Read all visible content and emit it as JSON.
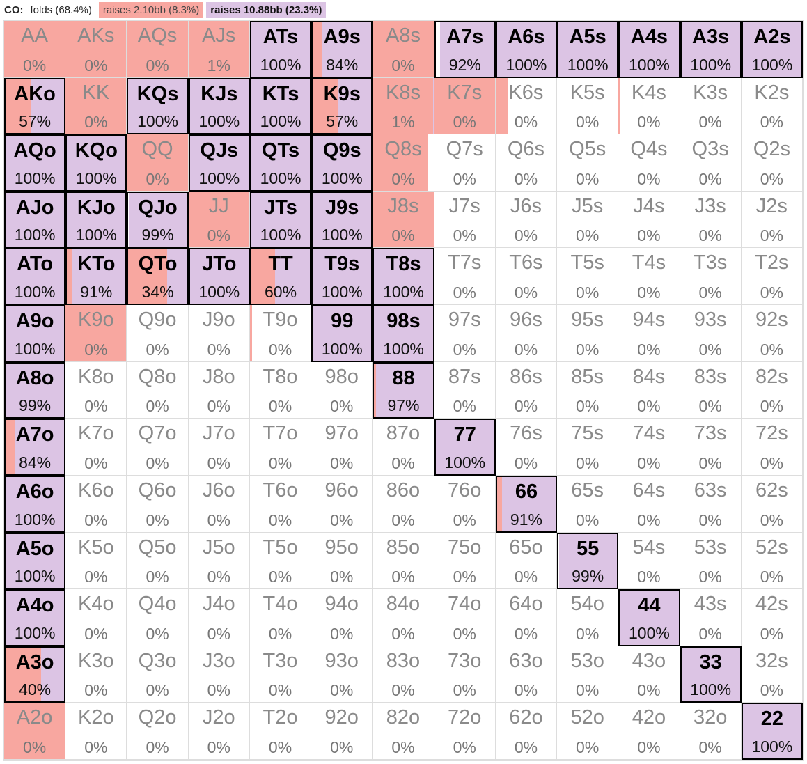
{
  "header": {
    "position": "CO:",
    "legend": [
      {
        "label": "folds (68.4%)",
        "kind": "fold"
      },
      {
        "label": "raises 2.10bb (8.3%)",
        "kind": "small"
      },
      {
        "label": "raises 10.88bb (23.3%)",
        "kind": "big"
      }
    ]
  },
  "colors": {
    "fold": "#ffffff",
    "raise_small": "#f8a7a0",
    "raise_big": "#dcc4e4",
    "highlight_border": "#000000"
  },
  "matrix": [
    [
      [
        "AA",
        "0%",
        0,
        1,
        0
      ],
      [
        "AKs",
        "0%",
        0,
        1,
        0
      ],
      [
        "AQs",
        "0%",
        0,
        1,
        0
      ],
      [
        "AJs",
        "1%",
        0,
        1,
        0.01
      ],
      [
        "ATs",
        "100%",
        1,
        0,
        1
      ],
      [
        "A9s",
        "84%",
        1,
        0.16,
        0.84
      ],
      [
        "A8s",
        "0%",
        0,
        1,
        0
      ],
      [
        "A7s",
        "92%",
        1,
        0,
        0.92
      ],
      [
        "A6s",
        "100%",
        1,
        0,
        1
      ],
      [
        "A5s",
        "100%",
        1,
        0,
        1
      ],
      [
        "A4s",
        "100%",
        1,
        0,
        1
      ],
      [
        "A3s",
        "100%",
        1,
        0,
        1
      ],
      [
        "A2s",
        "100%",
        1,
        0,
        1
      ]
    ],
    [
      [
        "AKo",
        "57%",
        1,
        0.43,
        0.57
      ],
      [
        "KK",
        "0%",
        0,
        1,
        0
      ],
      [
        "KQs",
        "100%",
        1,
        0,
        1
      ],
      [
        "KJs",
        "100%",
        1,
        0,
        1
      ],
      [
        "KTs",
        "100%",
        1,
        0,
        1
      ],
      [
        "K9s",
        "57%",
        1,
        0.43,
        0.57
      ],
      [
        "K8s",
        "1%",
        0,
        1,
        0.01
      ],
      [
        "K7s",
        "0%",
        0,
        1,
        0
      ],
      [
        "K6s",
        "0%",
        0,
        0.2,
        0
      ],
      [
        "K5s",
        "0%",
        0,
        0,
        0
      ],
      [
        "K4s",
        "0%",
        0,
        0.02,
        0
      ],
      [
        "K3s",
        "0%",
        0,
        0,
        0
      ],
      [
        "K2s",
        "0%",
        0,
        0,
        0
      ]
    ],
    [
      [
        "AQo",
        "100%",
        1,
        0,
        1
      ],
      [
        "KQo",
        "100%",
        1,
        0,
        1
      ],
      [
        "QQ",
        "0%",
        0,
        1,
        0
      ],
      [
        "QJs",
        "100%",
        1,
        0,
        1
      ],
      [
        "QTs",
        "100%",
        1,
        0,
        1
      ],
      [
        "Q9s",
        "100%",
        1,
        0,
        1
      ],
      [
        "Q8s",
        "0%",
        0,
        0.9,
        0
      ],
      [
        "Q7s",
        "0%",
        0,
        0,
        0
      ],
      [
        "Q6s",
        "0%",
        0,
        0,
        0
      ],
      [
        "Q5s",
        "0%",
        0,
        0,
        0
      ],
      [
        "Q4s",
        "0%",
        0,
        0,
        0
      ],
      [
        "Q3s",
        "0%",
        0,
        0,
        0
      ],
      [
        "Q2s",
        "0%",
        0,
        0,
        0
      ]
    ],
    [
      [
        "AJo",
        "100%",
        1,
        0,
        1
      ],
      [
        "KJo",
        "100%",
        1,
        0,
        1
      ],
      [
        "QJo",
        "99%",
        1,
        0,
        0.99
      ],
      [
        "JJ",
        "0%",
        0,
        1,
        0
      ],
      [
        "JTs",
        "100%",
        1,
        0,
        1
      ],
      [
        "J9s",
        "100%",
        1,
        0,
        1
      ],
      [
        "J8s",
        "0%",
        0,
        1,
        0
      ],
      [
        "J7s",
        "0%",
        0,
        0,
        0
      ],
      [
        "J6s",
        "0%",
        0,
        0,
        0
      ],
      [
        "J5s",
        "0%",
        0,
        0,
        0
      ],
      [
        "J4s",
        "0%",
        0,
        0,
        0
      ],
      [
        "J3s",
        "0%",
        0,
        0,
        0
      ],
      [
        "J2s",
        "0%",
        0,
        0,
        0
      ]
    ],
    [
      [
        "ATo",
        "100%",
        1,
        0,
        1
      ],
      [
        "KTo",
        "91%",
        1,
        0.09,
        0.91
      ],
      [
        "QTo",
        "34%",
        1,
        0.66,
        0.34
      ],
      [
        "JTo",
        "100%",
        1,
        0,
        1
      ],
      [
        "TT",
        "60%",
        1,
        0.4,
        0.6
      ],
      [
        "T9s",
        "100%",
        1,
        0,
        1
      ],
      [
        "T8s",
        "100%",
        1,
        0,
        1
      ],
      [
        "T7s",
        "0%",
        0,
        0,
        0
      ],
      [
        "T6s",
        "0%",
        0,
        0,
        0
      ],
      [
        "T5s",
        "0%",
        0,
        0,
        0
      ],
      [
        "T4s",
        "0%",
        0,
        0,
        0
      ],
      [
        "T3s",
        "0%",
        0,
        0,
        0
      ],
      [
        "T2s",
        "0%",
        0,
        0,
        0
      ]
    ],
    [
      [
        "A9o",
        "100%",
        1,
        0,
        1
      ],
      [
        "K9o",
        "0%",
        0,
        1,
        0
      ],
      [
        "Q9o",
        "0%",
        0,
        0,
        0
      ],
      [
        "J9o",
        "0%",
        0,
        0,
        0
      ],
      [
        "T9o",
        "0%",
        0,
        0.03,
        0
      ],
      [
        "99",
        "100%",
        1,
        0,
        1
      ],
      [
        "98s",
        "100%",
        1,
        0,
        1
      ],
      [
        "97s",
        "0%",
        0,
        0,
        0
      ],
      [
        "96s",
        "0%",
        0,
        0,
        0
      ],
      [
        "95s",
        "0%",
        0,
        0,
        0
      ],
      [
        "94s",
        "0%",
        0,
        0,
        0
      ],
      [
        "93s",
        "0%",
        0,
        0,
        0
      ],
      [
        "92s",
        "0%",
        0,
        0,
        0
      ]
    ],
    [
      [
        "A8o",
        "99%",
        1,
        0,
        0.99
      ],
      [
        "K8o",
        "0%",
        0,
        0,
        0
      ],
      [
        "Q8o",
        "0%",
        0,
        0,
        0
      ],
      [
        "J8o",
        "0%",
        0,
        0,
        0
      ],
      [
        "T8o",
        "0%",
        0,
        0,
        0
      ],
      [
        "98o",
        "0%",
        0,
        0,
        0
      ],
      [
        "88",
        "97%",
        1,
        0.03,
        0.97
      ],
      [
        "87s",
        "0%",
        0,
        0,
        0
      ],
      [
        "86s",
        "0%",
        0,
        0,
        0
      ],
      [
        "85s",
        "0%",
        0,
        0,
        0
      ],
      [
        "84s",
        "0%",
        0,
        0,
        0
      ],
      [
        "83s",
        "0%",
        0,
        0,
        0
      ],
      [
        "82s",
        "0%",
        0,
        0,
        0
      ]
    ],
    [
      [
        "A7o",
        "84%",
        1,
        0.16,
        0.84
      ],
      [
        "K7o",
        "0%",
        0,
        0,
        0
      ],
      [
        "Q7o",
        "0%",
        0,
        0,
        0
      ],
      [
        "J7o",
        "0%",
        0,
        0,
        0
      ],
      [
        "T7o",
        "0%",
        0,
        0,
        0
      ],
      [
        "97o",
        "0%",
        0,
        0,
        0
      ],
      [
        "87o",
        "0%",
        0,
        0,
        0
      ],
      [
        "77",
        "100%",
        1,
        0,
        1
      ],
      [
        "76s",
        "0%",
        0,
        0,
        0
      ],
      [
        "75s",
        "0%",
        0,
        0,
        0
      ],
      [
        "74s",
        "0%",
        0,
        0,
        0
      ],
      [
        "73s",
        "0%",
        0,
        0,
        0
      ],
      [
        "72s",
        "0%",
        0,
        0,
        0
      ]
    ],
    [
      [
        "A6o",
        "100%",
        1,
        0,
        1
      ],
      [
        "K6o",
        "0%",
        0,
        0,
        0
      ],
      [
        "Q6o",
        "0%",
        0,
        0,
        0
      ],
      [
        "J6o",
        "0%",
        0,
        0,
        0
      ],
      [
        "T6o",
        "0%",
        0,
        0,
        0
      ],
      [
        "96o",
        "0%",
        0,
        0,
        0
      ],
      [
        "86o",
        "0%",
        0,
        0,
        0
      ],
      [
        "76o",
        "0%",
        0,
        0,
        0
      ],
      [
        "66",
        "91%",
        1,
        0.09,
        0.91
      ],
      [
        "65s",
        "0%",
        0,
        0,
        0
      ],
      [
        "64s",
        "0%",
        0,
        0,
        0
      ],
      [
        "63s",
        "0%",
        0,
        0,
        0
      ],
      [
        "62s",
        "0%",
        0,
        0,
        0
      ]
    ],
    [
      [
        "A5o",
        "100%",
        1,
        0,
        1
      ],
      [
        "K5o",
        "0%",
        0,
        0,
        0
      ],
      [
        "Q5o",
        "0%",
        0,
        0,
        0
      ],
      [
        "J5o",
        "0%",
        0,
        0,
        0
      ],
      [
        "T5o",
        "0%",
        0,
        0,
        0
      ],
      [
        "95o",
        "0%",
        0,
        0,
        0
      ],
      [
        "85o",
        "0%",
        0,
        0,
        0
      ],
      [
        "75o",
        "0%",
        0,
        0,
        0
      ],
      [
        "65o",
        "0%",
        0,
        0,
        0
      ],
      [
        "55",
        "99%",
        1,
        0,
        0.99
      ],
      [
        "54s",
        "0%",
        0,
        0,
        0
      ],
      [
        "53s",
        "0%",
        0,
        0,
        0
      ],
      [
        "52s",
        "0%",
        0,
        0,
        0
      ]
    ],
    [
      [
        "A4o",
        "100%",
        1,
        0,
        1
      ],
      [
        "K4o",
        "0%",
        0,
        0,
        0
      ],
      [
        "Q4o",
        "0%",
        0,
        0,
        0
      ],
      [
        "J4o",
        "0%",
        0,
        0,
        0
      ],
      [
        "T4o",
        "0%",
        0,
        0,
        0
      ],
      [
        "94o",
        "0%",
        0,
        0,
        0
      ],
      [
        "84o",
        "0%",
        0,
        0,
        0
      ],
      [
        "74o",
        "0%",
        0,
        0,
        0
      ],
      [
        "64o",
        "0%",
        0,
        0,
        0
      ],
      [
        "54o",
        "0%",
        0,
        0,
        0
      ],
      [
        "44",
        "100%",
        1,
        0,
        1
      ],
      [
        "43s",
        "0%",
        0,
        0,
        0
      ],
      [
        "42s",
        "0%",
        0,
        0,
        0
      ]
    ],
    [
      [
        "A3o",
        "40%",
        1,
        0.6,
        0.4
      ],
      [
        "K3o",
        "0%",
        0,
        0,
        0
      ],
      [
        "Q3o",
        "0%",
        0,
        0,
        0
      ],
      [
        "J3o",
        "0%",
        0,
        0,
        0
      ],
      [
        "T3o",
        "0%",
        0,
        0,
        0
      ],
      [
        "93o",
        "0%",
        0,
        0,
        0
      ],
      [
        "83o",
        "0%",
        0,
        0,
        0
      ],
      [
        "73o",
        "0%",
        0,
        0,
        0
      ],
      [
        "63o",
        "0%",
        0,
        0,
        0
      ],
      [
        "53o",
        "0%",
        0,
        0,
        0
      ],
      [
        "43o",
        "0%",
        0,
        0,
        0
      ],
      [
        "33",
        "100%",
        1,
        0,
        1
      ],
      [
        "32s",
        "0%",
        0,
        0,
        0
      ]
    ],
    [
      [
        "A2o",
        "0%",
        0,
        1,
        0
      ],
      [
        "K2o",
        "0%",
        0,
        0,
        0
      ],
      [
        "Q2o",
        "0%",
        0,
        0,
        0
      ],
      [
        "J2o",
        "0%",
        0,
        0,
        0
      ],
      [
        "T2o",
        "0%",
        0,
        0,
        0
      ],
      [
        "92o",
        "0%",
        0,
        0,
        0
      ],
      [
        "82o",
        "0%",
        0,
        0,
        0
      ],
      [
        "72o",
        "0%",
        0,
        0,
        0
      ],
      [
        "62o",
        "0%",
        0,
        0,
        0
      ],
      [
        "52o",
        "0%",
        0,
        0,
        0
      ],
      [
        "42o",
        "0%",
        0,
        0,
        0
      ],
      [
        "32o",
        "0%",
        0,
        0,
        0
      ],
      [
        "22",
        "100%",
        1,
        0,
        1
      ]
    ]
  ]
}
